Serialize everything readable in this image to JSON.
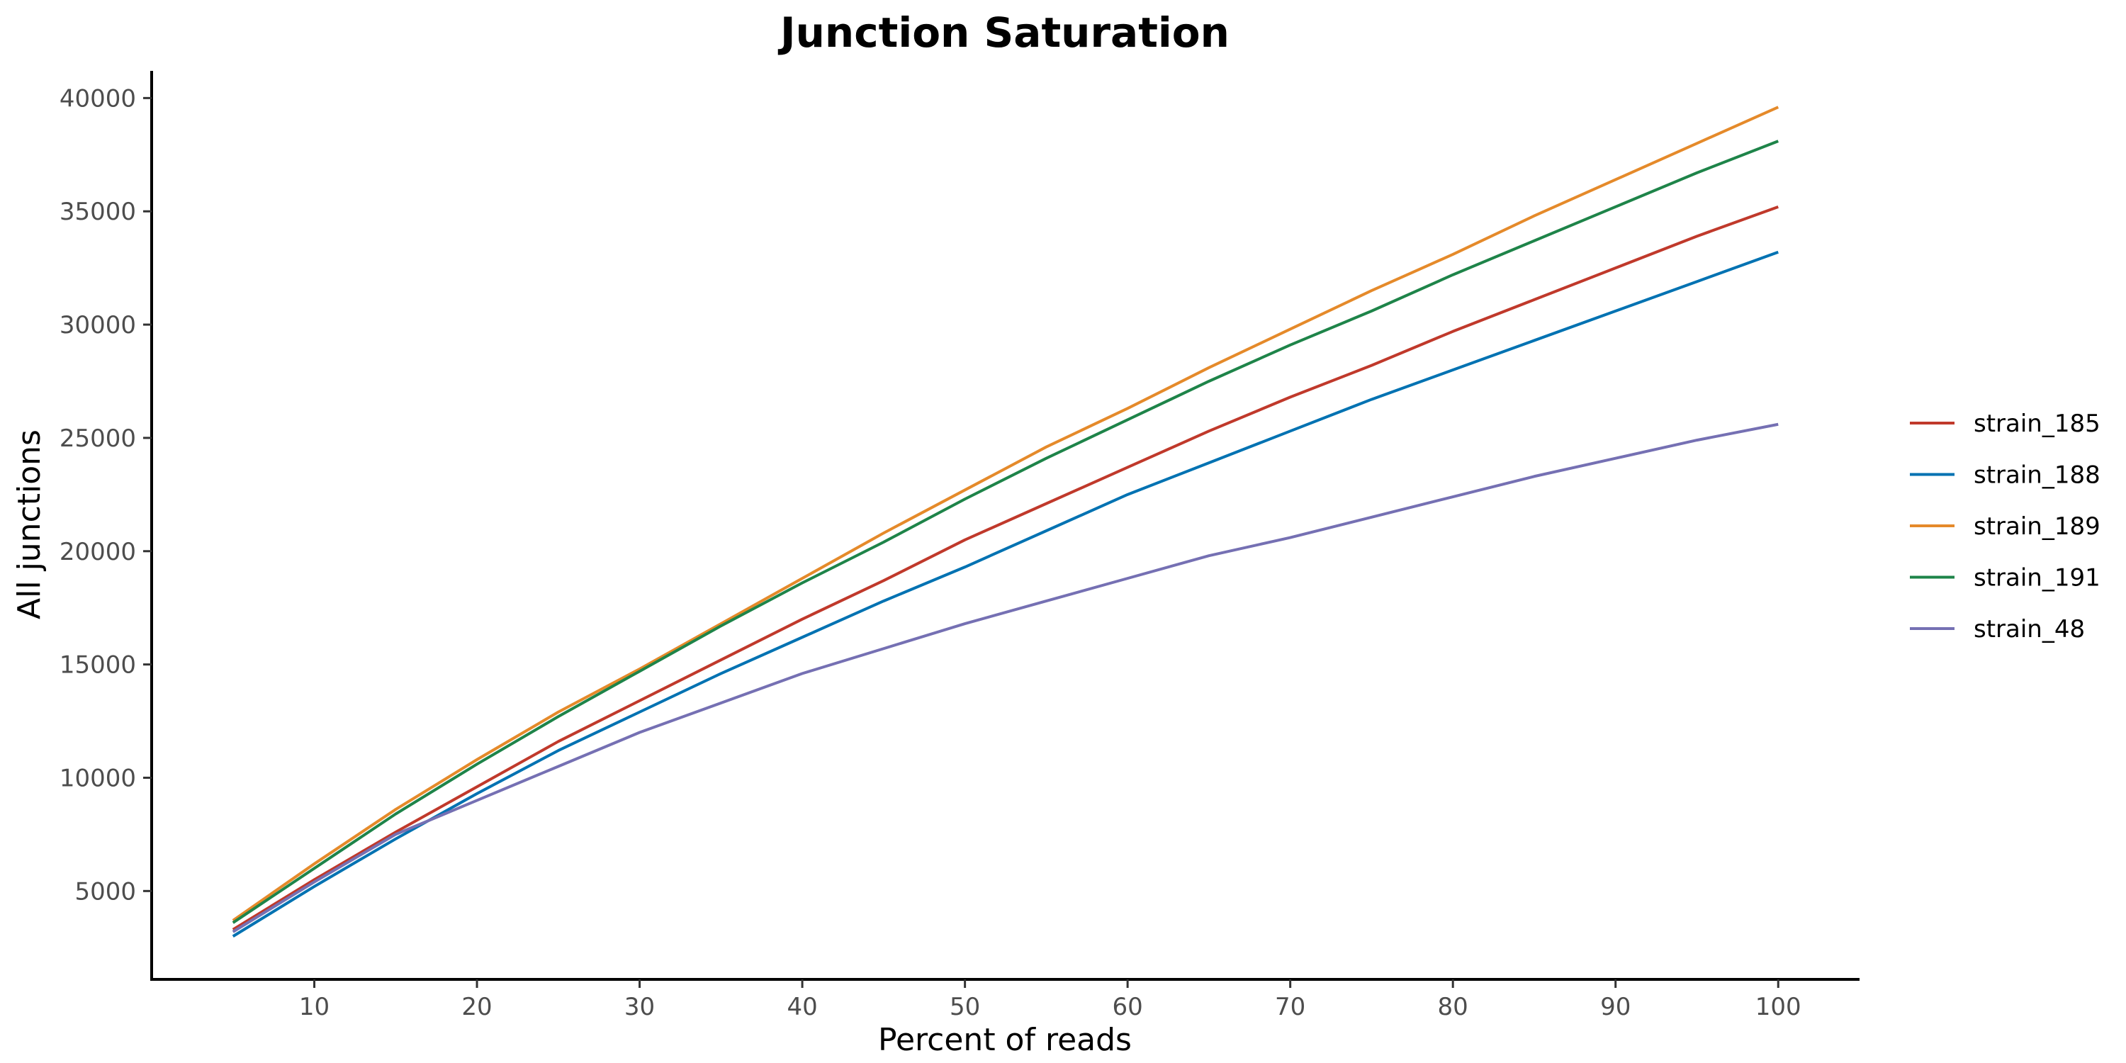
{
  "chart_data": {
    "type": "line",
    "title": "Junction Saturation",
    "xlabel": "Percent of reads",
    "ylabel": "All junctions",
    "xlim": [
      0,
      105
    ],
    "ylim": [
      1100,
      41200
    ],
    "xticks": [
      10,
      20,
      30,
      40,
      50,
      60,
      70,
      80,
      90,
      100
    ],
    "yticks": [
      5000,
      10000,
      15000,
      20000,
      25000,
      30000,
      35000,
      40000
    ],
    "grid": false,
    "legend_position": "right",
    "x": [
      5,
      10,
      15,
      20,
      25,
      30,
      35,
      40,
      45,
      50,
      55,
      60,
      65,
      70,
      75,
      80,
      85,
      90,
      95,
      100
    ],
    "series": [
      {
        "name": "strain_185",
        "color": "#c0392b",
        "values": [
          3300,
          5500,
          7600,
          9600,
          11600,
          13400,
          15200,
          17000,
          18700,
          20500,
          22100,
          23700,
          25300,
          26800,
          28200,
          29700,
          31100,
          32500,
          33900,
          35200
        ]
      },
      {
        "name": "strain_188",
        "color": "#0072b2",
        "values": [
          3000,
          5200,
          7300,
          9300,
          11200,
          12900,
          14600,
          16200,
          17800,
          19300,
          20900,
          22500,
          23900,
          25300,
          26700,
          28000,
          29300,
          30600,
          31900,
          33200
        ]
      },
      {
        "name": "strain_189",
        "color": "#e58a2a",
        "values": [
          3700,
          6200,
          8600,
          10800,
          12900,
          14800,
          16800,
          18800,
          20800,
          22700,
          24600,
          26300,
          28100,
          29800,
          31500,
          33100,
          34800,
          36400,
          38000,
          39600
        ]
      },
      {
        "name": "strain_191",
        "color": "#1e8449",
        "values": [
          3600,
          6000,
          8400,
          10600,
          12700,
          14700,
          16700,
          18600,
          20400,
          22300,
          24100,
          25800,
          27500,
          29100,
          30600,
          32200,
          33700,
          35200,
          36700,
          38100
        ]
      },
      {
        "name": "strain_48",
        "color": "#7570b3",
        "values": [
          3200,
          5400,
          7500,
          9000,
          10500,
          12000,
          13300,
          14600,
          15700,
          16800,
          17800,
          18800,
          19800,
          20600,
          21500,
          22400,
          23300,
          24100,
          24900,
          25600
        ]
      }
    ]
  }
}
